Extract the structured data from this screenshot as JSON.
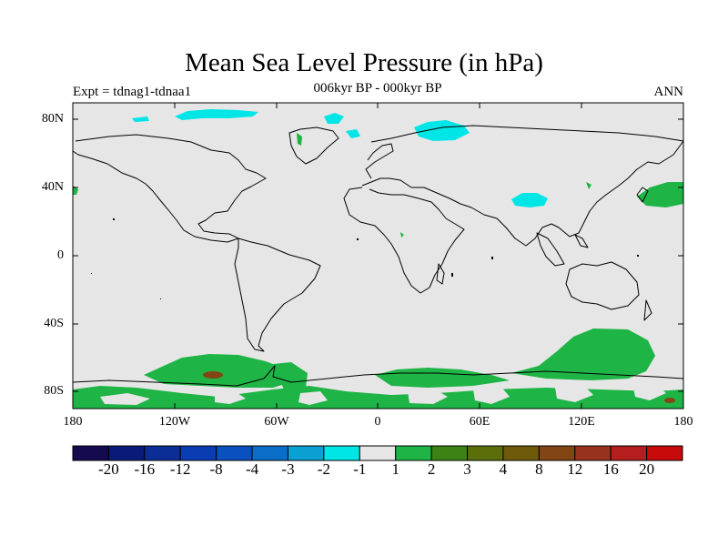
{
  "title": "Mean Sea Level Pressure (in hPa)",
  "subtitle": "006kyr BP - 000kyr BP",
  "left_label": "Expt = tdnag1-tdnaa1",
  "right_label": "ANN",
  "lat_ticks": [
    "80N",
    "40N",
    "0",
    "40S",
    "80S"
  ],
  "lon_ticks": [
    "180",
    "120W",
    "60W",
    "0",
    "60E",
    "120E",
    "180"
  ],
  "colorbar": {
    "colors": [
      "#150a50",
      "#0a1a78",
      "#0a2d96",
      "#0a3cb4",
      "#0a50be",
      "#0a6ec8",
      "#0aa0d2",
      "#00e6e6",
      "#e6e6e6",
      "#1eb446",
      "#3c8214",
      "#5a6e0a",
      "#6e5a0a",
      "#824614",
      "#96321e",
      "#b41e1e",
      "#c80a0a"
    ],
    "labels": [
      "-20",
      "-16",
      "-12",
      "-8",
      "-4",
      "-3",
      "-2",
      "-1",
      "1",
      "2",
      "3",
      "4",
      "8",
      "12",
      "16",
      "20"
    ]
  },
  "colors": {
    "background": "#e6e6e6",
    "positive_1_2": "#1eb446",
    "negative_1_2": "#00e6e6",
    "coast": "#000000"
  }
}
